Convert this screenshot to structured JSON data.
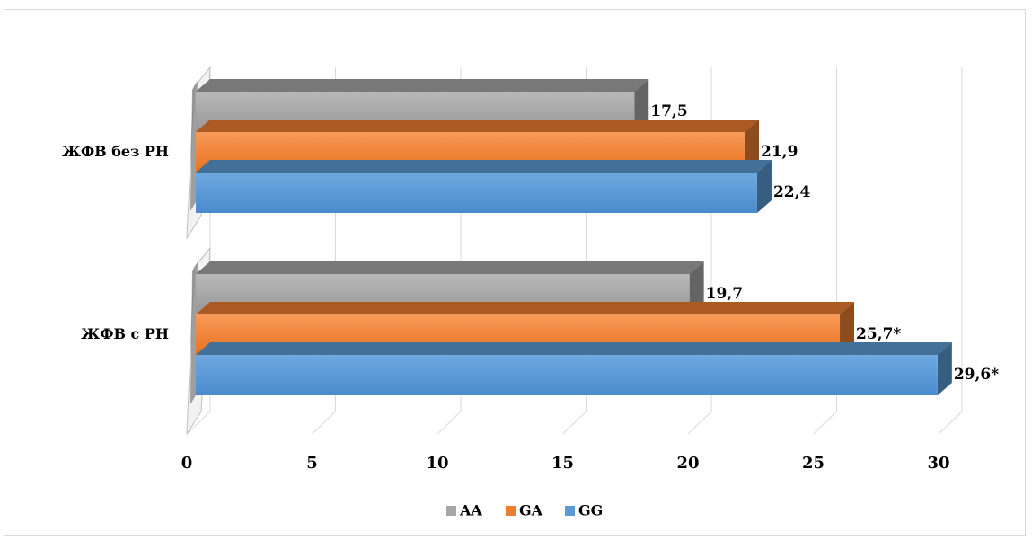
{
  "chart_data": {
    "type": "bar",
    "orientation": "horizontal",
    "style": "3d",
    "categories": [
      "ЖФВ без РН",
      "ЖФВ с РН"
    ],
    "series": [
      {
        "name": "AA",
        "values": [
          17.5,
          19.7
        ],
        "labels": [
          "17,5",
          "19,7"
        ],
        "color": "#a6a6a6"
      },
      {
        "name": "GA",
        "values": [
          21.9,
          25.7
        ],
        "labels": [
          "21,9",
          "25,7*"
        ],
        "color": "#ed7d31"
      },
      {
        "name": "GG",
        "values": [
          22.4,
          29.6
        ],
        "labels": [
          "22,4",
          "29,6*"
        ],
        "color": "#5b9bd5"
      }
    ],
    "x_ticks": [
      "0",
      "5",
      "10",
      "15",
      "20",
      "25",
      "30"
    ],
    "xlim": [
      0,
      30
    ],
    "grid": true,
    "legend": "bottom"
  }
}
